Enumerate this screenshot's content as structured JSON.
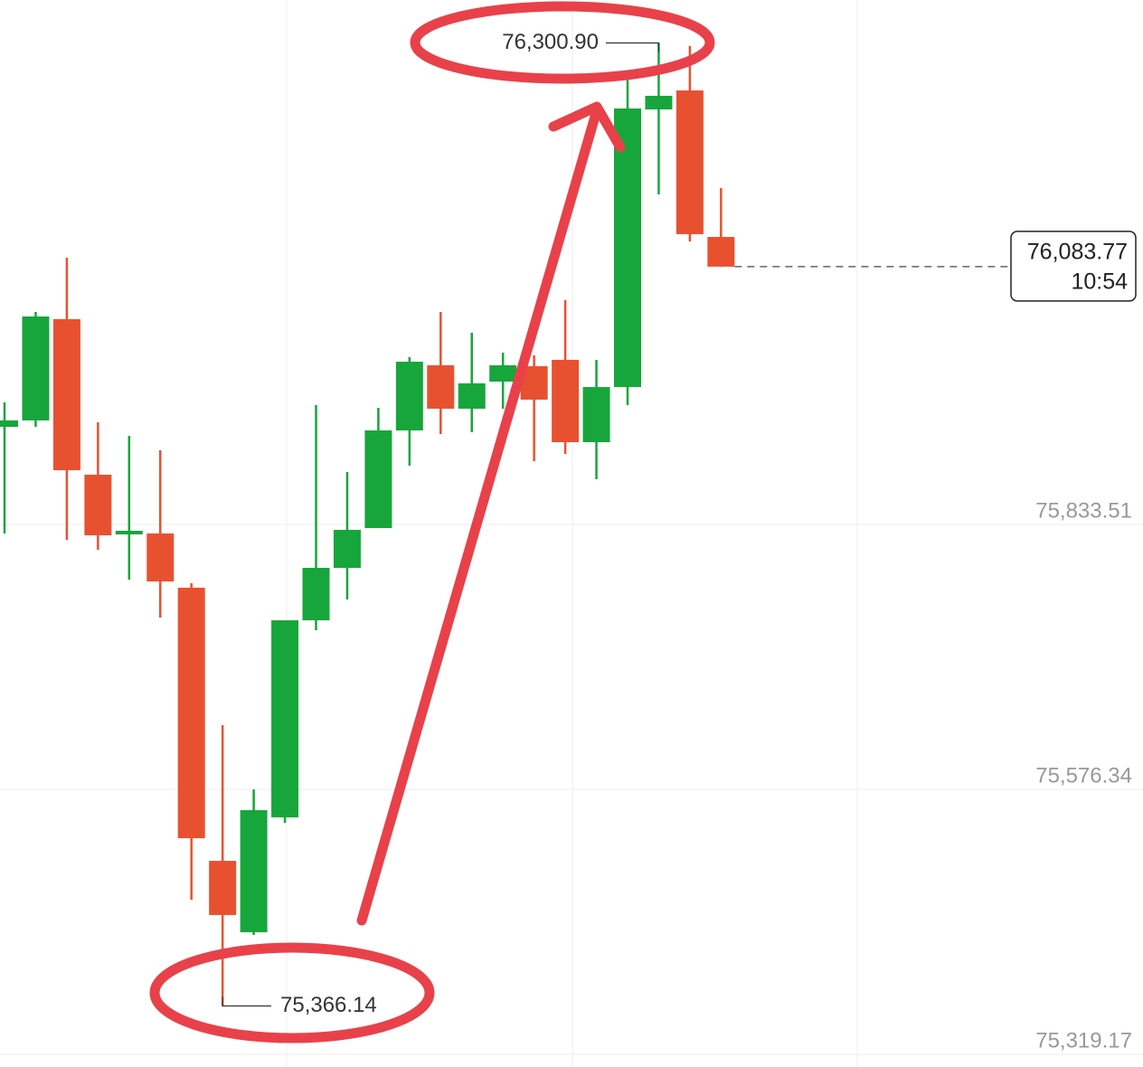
{
  "chart_data": {
    "type": "candlestick",
    "open": [
      75928.3,
      75934.5,
      76032.8,
      75881.8,
      75823.9,
      75824.8,
      75772.1,
      75507.0,
      75437.7,
      75549.2,
      75740.5,
      75791.4,
      75830.0,
      75924.8,
      75988.0,
      75945.9,
      75972.2,
      75987.1,
      75993.3,
      75913.4,
      75966.9,
      76236.4,
      76254.8,
      76112.6
    ],
    "high": [
      75952.0,
      76039.8,
      76092.5,
      75932.7,
      75919.5,
      75905.5,
      75776.5,
      75638.7,
      75576.4,
      75740.5,
      75949.4,
      75884.4,
      75946.8,
      75995.9,
      76039.8,
      76019.6,
      76000.3,
      75997.7,
      76051.2,
      75993.3,
      76272.4,
      76300.9,
      76298.0,
      76160.0
    ],
    "low": [
      75824.8,
      75928.3,
      75818.6,
      75809.0,
      75780.0,
      75743.1,
      75469.3,
      75366.14,
      75435.1,
      75543.9,
      75730.8,
      75760.7,
      75830.0,
      75890.6,
      75921.3,
      75923.1,
      75945.9,
      75895.0,
      75902.0,
      75877.4,
      75949.4,
      76153.9,
      76108.2,
      76083.77
    ],
    "close": [
      75934.5,
      76035.4,
      75886.2,
      75823.0,
      75827.4,
      75778.2,
      75529.0,
      75454.4,
      75556.2,
      75740.5,
      75791.4,
      75828.3,
      75924.8,
      75991.5,
      75945.9,
      75970.5,
      75988.0,
      75954.7,
      75913.4,
      75966.9,
      76237.3,
      76249.6,
      76115.3,
      76083.77
    ],
    "up_color": "#17a63b",
    "down_color": "#e85130",
    "ylim": [
      75306.9,
      76342.6
    ],
    "yticks": [
      {
        "value": 75319.17,
        "label": "75,319.17"
      },
      {
        "value": 75576.34,
        "label": "75,576.34"
      },
      {
        "value": 75833.51,
        "label": "75,833.51"
      }
    ],
    "grid": true,
    "annotations": {
      "high": "76,300.90",
      "low": "75,366.14",
      "last_price": "76,083.77",
      "last_time": "10:54"
    }
  }
}
